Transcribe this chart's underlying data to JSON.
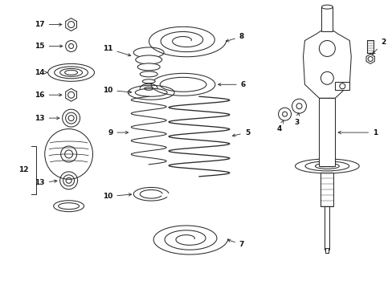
{
  "bg_color": "#ffffff",
  "line_color": "#2a2a2a",
  "text_color": "#111111",
  "figsize": [
    4.89,
    3.6
  ],
  "dpi": 100,
  "lw": 0.75,
  "fontsize": 6.5
}
